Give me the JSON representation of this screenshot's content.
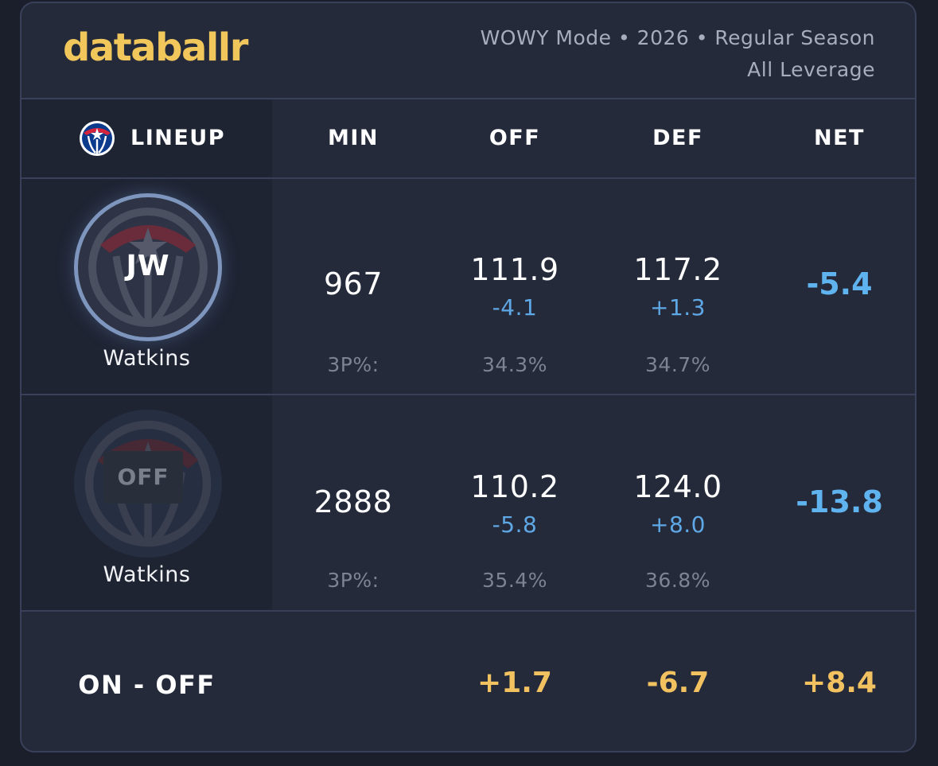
{
  "brand": "databallr",
  "meta": {
    "line1": "WOWY Mode • 2026 • Regular Season",
    "line2": "All Leverage"
  },
  "columns": {
    "lineup": "LINEUP",
    "min": "MIN",
    "off": "OFF",
    "def": "DEF",
    "net": "NET"
  },
  "rows": [
    {
      "state": "on",
      "badge": "JW",
      "player": "Watkins",
      "min": "967",
      "off": "111.9",
      "off_delta": "-4.1",
      "def": "117.2",
      "def_delta": "+1.3",
      "net": "-5.4",
      "threep_label": "3P%:",
      "off_3p": "34.3%",
      "def_3p": "34.7%"
    },
    {
      "state": "off",
      "badge": "OFF",
      "player": "Watkins",
      "min": "2888",
      "off": "110.2",
      "off_delta": "-5.8",
      "def": "124.0",
      "def_delta": "+8.0",
      "net": "-13.8",
      "threep_label": "3P%:",
      "off_3p": "35.4%",
      "def_3p": "36.8%"
    }
  ],
  "on_off": {
    "label": "ON - OFF",
    "off": "+1.7",
    "def": "-6.7",
    "net": "+8.4"
  },
  "icons": {
    "team_logo": "wizards-logo-icon"
  },
  "colors": {
    "brand": "#f1c75b",
    "delta_blue": "#5fa8e6",
    "diff_gold": "#f2c160"
  }
}
